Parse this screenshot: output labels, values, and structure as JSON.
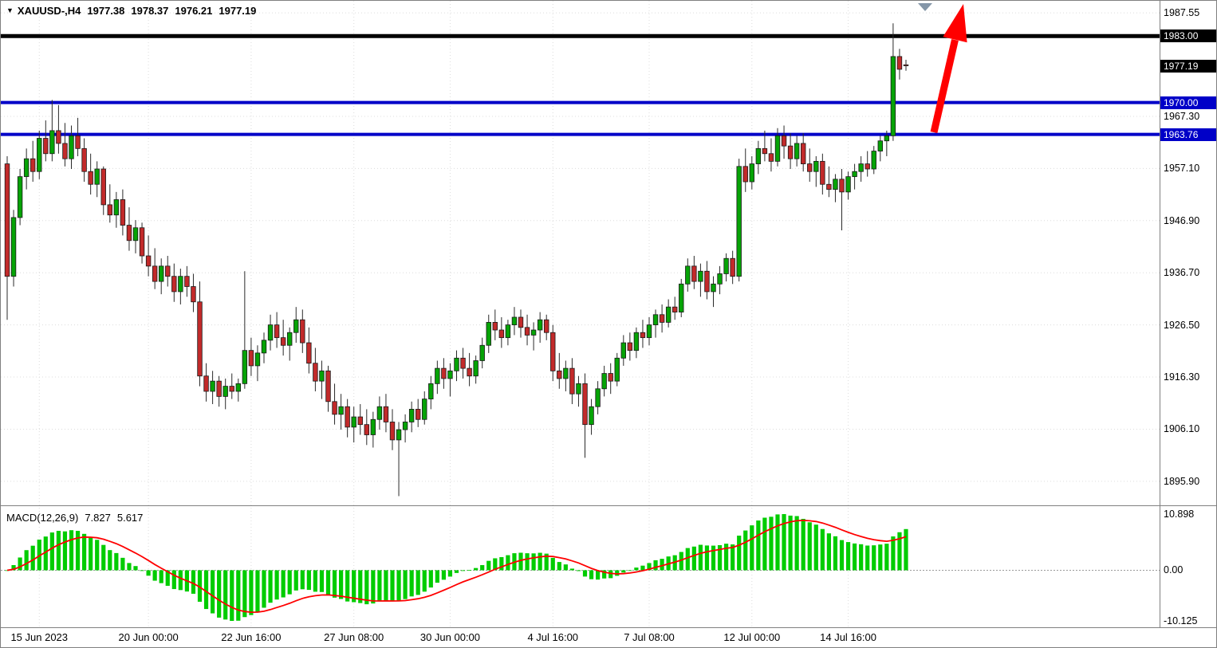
{
  "header": {
    "symbol_period": "XAUUSD-,H4",
    "open": "1977.38",
    "high": "1978.37",
    "low": "1976.21",
    "close": "1977.19"
  },
  "icons": {
    "expand": "▼"
  },
  "colors": {
    "bull": "#06A306",
    "bear": "#C22A2A",
    "wick": "#2a2a2a",
    "candle_outline": "#1a1a1a",
    "grid": "#dcdcdc",
    "zero_line": "#9a9a9a",
    "level_black": "#000000",
    "level_blue": "#0000C8",
    "macd_bar": "#00CC00",
    "macd_signal": "#FF0000",
    "arrow": "#FF0000",
    "shift_marker": "#8496A8",
    "separator": "#808080",
    "axis_text": "#000000"
  },
  "chart_data": [
    {
      "type": "candlestick",
      "symbol": "XAUUSD-",
      "timeframe": "H4",
      "ylim": [
        1891.2,
        1989.9
      ],
      "y_ticks": [
        "1987.55",
        "1967.30",
        "1957.10",
        "1946.90",
        "1936.70",
        "1926.50",
        "1916.30",
        "1906.10",
        "1895.90"
      ],
      "x_ticks": [
        {
          "bar": 5,
          "label": "15 Jun 2023"
        },
        {
          "bar": 22,
          "label": "20 Jun 00:00"
        },
        {
          "bar": 38,
          "label": "22 Jun 16:00"
        },
        {
          "bar": 54,
          "label": "27 Jun 08:00"
        },
        {
          "bar": 69,
          "label": "30 Jun 00:00"
        },
        {
          "bar": 85,
          "label": "4 Jul 16:00"
        },
        {
          "bar": 100,
          "label": "7 Jul 08:00"
        },
        {
          "bar": 116,
          "label": "12 Jul 00:00"
        },
        {
          "bar": 131,
          "label": "14 Jul 16:00"
        }
      ],
      "levels": [
        {
          "price": 1983.0,
          "label": "1983.00",
          "color": "#000000",
          "width": 5
        },
        {
          "price": 1970.0,
          "label": "1970.00",
          "color": "#0000C8",
          "width": 4
        },
        {
          "price": 1963.76,
          "label": "1963.76",
          "color": "#0000C8",
          "width": 4
        }
      ],
      "last_price": {
        "price": 1977.19,
        "label": "1977.19",
        "badge_bg": "#000000"
      },
      "candles_ohlc": [
        [
          1958,
          1959.5,
          1927.5,
          1936
        ],
        [
          1936,
          1949,
          1934,
          1947.5
        ],
        [
          1947.5,
          1957,
          1946,
          1955.5
        ],
        [
          1955.5,
          1961,
          1953,
          1959
        ],
        [
          1959,
          1962.5,
          1954.5,
          1956.5
        ],
        [
          1956.5,
          1964.5,
          1955,
          1963
        ],
        [
          1963,
          1966.5,
          1958.5,
          1960
        ],
        [
          1960,
          1970.5,
          1958.5,
          1964.5
        ],
        [
          1964.5,
          1969.5,
          1960,
          1962
        ],
        [
          1962,
          1966,
          1957.5,
          1959
        ],
        [
          1959,
          1965.5,
          1957,
          1963.5
        ],
        [
          1963.5,
          1967,
          1959.5,
          1961
        ],
        [
          1961,
          1963,
          1954.5,
          1956.5
        ],
        [
          1956.5,
          1960,
          1952,
          1954
        ],
        [
          1954,
          1958.5,
          1951.5,
          1957
        ],
        [
          1957,
          1957.5,
          1948,
          1950
        ],
        [
          1950,
          1954,
          1946.5,
          1948
        ],
        [
          1948,
          1952.5,
          1945.5,
          1951
        ],
        [
          1951,
          1953,
          1944,
          1946
        ],
        [
          1946,
          1949.5,
          1941,
          1943
        ],
        [
          1943,
          1947,
          1940.5,
          1945.5
        ],
        [
          1945.5,
          1946.5,
          1938.5,
          1940
        ],
        [
          1940,
          1944,
          1936,
          1938
        ],
        [
          1938,
          1941.5,
          1933.5,
          1935
        ],
        [
          1935,
          1939.5,
          1932.5,
          1938
        ],
        [
          1938,
          1940,
          1934,
          1936
        ],
        [
          1936,
          1938.5,
          1931,
          1933
        ],
        [
          1933,
          1937.5,
          1930.5,
          1936
        ],
        [
          1936,
          1938,
          1932,
          1934
        ],
        [
          1934,
          1936.5,
          1929,
          1931
        ],
        [
          1931,
          1935,
          1914.5,
          1916.5
        ],
        [
          1916.5,
          1919,
          1911.5,
          1913.5
        ],
        [
          1913.5,
          1917.5,
          1911,
          1915.5
        ],
        [
          1915.5,
          1916.5,
          1910.5,
          1912.5
        ],
        [
          1912.5,
          1916,
          1910,
          1914.5
        ],
        [
          1914.5,
          1917,
          1912,
          1913.5
        ],
        [
          1913.5,
          1916,
          1911.5,
          1915
        ],
        [
          1915,
          1937,
          1914,
          1921.5
        ],
        [
          1921.5,
          1924,
          1916.5,
          1918.5
        ],
        [
          1918.5,
          1922.5,
          1915.5,
          1921
        ],
        [
          1921,
          1925,
          1919,
          1923.5
        ],
        [
          1923.5,
          1928.5,
          1921.5,
          1926.5
        ],
        [
          1926.5,
          1929,
          1922,
          1924
        ],
        [
          1924,
          1927.5,
          1920.5,
          1922.5
        ],
        [
          1922.5,
          1926,
          1919.5,
          1925
        ],
        [
          1925,
          1930,
          1923,
          1927.5
        ],
        [
          1927.5,
          1929.5,
          1921,
          1923
        ],
        [
          1923,
          1926,
          1917,
          1919
        ],
        [
          1919,
          1922,
          1913.5,
          1915.5
        ],
        [
          1915.5,
          1919.5,
          1912,
          1917.5
        ],
        [
          1917.5,
          1918.5,
          1909.5,
          1911.5
        ],
        [
          1911.5,
          1915,
          1907,
          1909
        ],
        [
          1909,
          1913,
          1906,
          1910.5
        ],
        [
          1910.5,
          1912,
          1904.5,
          1906.5
        ],
        [
          1906.5,
          1910.5,
          1903.5,
          1908.5
        ],
        [
          1908.5,
          1911,
          1905,
          1907
        ],
        [
          1907,
          1910,
          1903,
          1905
        ],
        [
          1905,
          1909.5,
          1902.5,
          1908
        ],
        [
          1908,
          1912.5,
          1906,
          1910.5
        ],
        [
          1910.5,
          1913,
          1905.5,
          1907.5
        ],
        [
          1907.5,
          1910,
          1902,
          1904
        ],
        [
          1904,
          1907.5,
          1893,
          1906
        ],
        [
          1906,
          1909,
          1903.5,
          1907.5
        ],
        [
          1907.5,
          1911.5,
          1905.5,
          1910
        ],
        [
          1910,
          1912,
          1906.5,
          1908
        ],
        [
          1908,
          1913.5,
          1907,
          1912
        ],
        [
          1912,
          1916.5,
          1910,
          1915
        ],
        [
          1915,
          1919.5,
          1913,
          1918
        ],
        [
          1918,
          1920,
          1914,
          1916
        ],
        [
          1916,
          1919,
          1912.5,
          1917.5
        ],
        [
          1917.5,
          1921.5,
          1915.5,
          1920
        ],
        [
          1920,
          1922,
          1916,
          1918
        ],
        [
          1918,
          1921,
          1914.5,
          1916.5
        ],
        [
          1916.5,
          1920.5,
          1915,
          1919.5
        ],
        [
          1919.5,
          1924,
          1918,
          1922.5
        ],
        [
          1922.5,
          1928.5,
          1921,
          1927
        ],
        [
          1927,
          1929.5,
          1923.5,
          1925.5
        ],
        [
          1925.5,
          1928,
          1922,
          1924
        ],
        [
          1924,
          1927.5,
          1922.5,
          1926.5
        ],
        [
          1926.5,
          1930,
          1924.5,
          1928
        ],
        [
          1928,
          1929.5,
          1924,
          1926
        ],
        [
          1926,
          1928.5,
          1922.5,
          1924.5
        ],
        [
          1924.5,
          1927,
          1921.5,
          1925.5
        ],
        [
          1925.5,
          1929,
          1923,
          1927.5
        ],
        [
          1927.5,
          1928.5,
          1923.5,
          1925
        ],
        [
          1925,
          1926.5,
          1915.5,
          1917.5
        ],
        [
          1917.5,
          1921,
          1914,
          1916
        ],
        [
          1916,
          1919.5,
          1913.5,
          1918
        ],
        [
          1918,
          1920,
          1911,
          1913
        ],
        [
          1913,
          1916.5,
          1910.5,
          1915
        ],
        [
          1915,
          1917,
          1900.5,
          1907
        ],
        [
          1907,
          1912,
          1905,
          1910.5
        ],
        [
          1910.5,
          1915.5,
          1909,
          1914
        ],
        [
          1914,
          1918.5,
          1912.5,
          1917
        ],
        [
          1917,
          1919,
          1913,
          1915.5
        ],
        [
          1915.5,
          1921,
          1914.5,
          1920
        ],
        [
          1920,
          1924.5,
          1918.5,
          1923
        ],
        [
          1923,
          1925,
          1919.5,
          1921.5
        ],
        [
          1921.5,
          1926,
          1920,
          1925
        ],
        [
          1925,
          1927.5,
          1922,
          1924
        ],
        [
          1924,
          1928,
          1922.5,
          1926.5
        ],
        [
          1926.5,
          1929.5,
          1924,
          1928.5
        ],
        [
          1928.5,
          1930.5,
          1925,
          1927
        ],
        [
          1927,
          1931.5,
          1926,
          1930
        ],
        [
          1930,
          1932,
          1927.5,
          1929
        ],
        [
          1929,
          1935.5,
          1928,
          1934.5
        ],
        [
          1934.5,
          1939.5,
          1933,
          1938
        ],
        [
          1938,
          1940,
          1933.5,
          1935
        ],
        [
          1935,
          1938.5,
          1932,
          1937
        ],
        [
          1937,
          1939,
          1931.5,
          1933
        ],
        [
          1933,
          1936,
          1930,
          1934.5
        ],
        [
          1934.5,
          1938,
          1932.5,
          1936.5
        ],
        [
          1936.5,
          1940.5,
          1935,
          1939.5
        ],
        [
          1939.5,
          1941,
          1934.5,
          1936
        ],
        [
          1936,
          1959,
          1935,
          1957.5
        ],
        [
          1957.5,
          1961,
          1952.5,
          1954.5
        ],
        [
          1954.5,
          1959.5,
          1953,
          1958
        ],
        [
          1958,
          1962.5,
          1956,
          1961
        ],
        [
          1961,
          1964.5,
          1958.5,
          1960
        ],
        [
          1960,
          1963,
          1956.5,
          1958.5
        ],
        [
          1958.5,
          1965,
          1957.5,
          1963.5
        ],
        [
          1963.5,
          1965.5,
          1959,
          1961.5
        ],
        [
          1961.5,
          1964,
          1957,
          1959
        ],
        [
          1959,
          1963.5,
          1957.5,
          1962
        ],
        [
          1962,
          1964,
          1956.5,
          1958
        ],
        [
          1958,
          1961,
          1954.5,
          1956.5
        ],
        [
          1956.5,
          1959.5,
          1953.5,
          1958.5
        ],
        [
          1958.5,
          1960,
          1952,
          1954
        ],
        [
          1954,
          1957.5,
          1951.5,
          1953
        ],
        [
          1953,
          1956,
          1950.5,
          1955
        ],
        [
          1955,
          1957,
          1945,
          1952.5
        ],
        [
          1952.5,
          1956.5,
          1951,
          1955.5
        ],
        [
          1955.5,
          1958,
          1953,
          1956.5
        ],
        [
          1956.5,
          1959.5,
          1954.5,
          1958
        ],
        [
          1958,
          1960.5,
          1955.5,
          1957
        ],
        [
          1957,
          1961.5,
          1956,
          1960.5
        ],
        [
          1960.5,
          1963.5,
          1958.5,
          1962.5
        ],
        [
          1962.5,
          1964.5,
          1959.5,
          1963.5
        ],
        [
          1963.5,
          1985.5,
          1962.5,
          1979
        ],
        [
          1979,
          1980.5,
          1974.5,
          1976.5
        ],
        [
          1977.38,
          1978.37,
          1976.21,
          1977.19
        ]
      ]
    },
    {
      "type": "macd",
      "label": "MACD(12,26,9)",
      "params": [
        12,
        26,
        9
      ],
      "current_macd": "7.827",
      "current_signal": "5.617",
      "y_ticks": [
        "10.898",
        "0.00",
        "-10.125"
      ],
      "computed_from": "closes of candles_ohlc: histogram = EMA12-EMA26 (green bars), signal = EMA9 of histogram (red line)"
    }
  ]
}
